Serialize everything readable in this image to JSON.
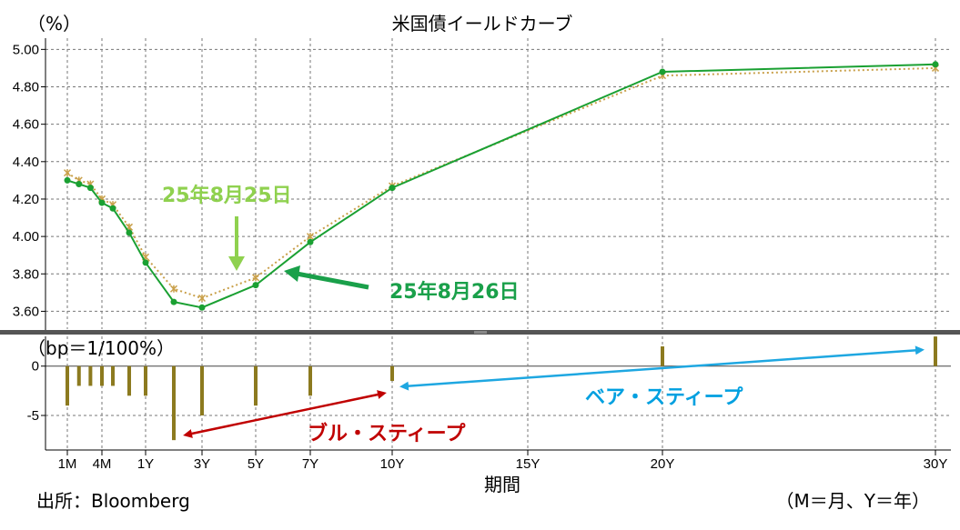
{
  "chart_data": {
    "type": "line",
    "title": "米国債イールドカーブ",
    "top_panel": {
      "unit_label": "（%）",
      "ylim": [
        3.5,
        5.06
      ],
      "yticks": [
        "5.00",
        "4.80",
        "4.60",
        "4.40",
        "4.20",
        "4.00",
        "3.80",
        "3.60"
      ],
      "series": [
        {
          "name": "25年8月25日",
          "color": "#c9a04a",
          "style": "dotted",
          "points": [
            [
              0.083,
              4.34
            ],
            [
              0.167,
              4.3
            ],
            [
              0.25,
              4.28
            ],
            [
              0.333,
              4.2
            ],
            [
              0.5,
              4.17
            ],
            [
              0.75,
              4.05
            ],
            [
              1,
              3.89
            ],
            [
              2,
              3.72
            ],
            [
              3,
              3.67
            ],
            [
              5,
              3.78
            ],
            [
              7,
              4.0
            ],
            [
              10,
              4.27
            ],
            [
              20,
              4.86
            ],
            [
              30,
              4.9
            ]
          ]
        },
        {
          "name": "25年8月26日",
          "color": "#1aa032",
          "style": "solid",
          "points": [
            [
              0.083,
              4.3
            ],
            [
              0.167,
              4.28
            ],
            [
              0.25,
              4.26
            ],
            [
              0.333,
              4.18
            ],
            [
              0.5,
              4.15
            ],
            [
              0.75,
              4.02
            ],
            [
              1,
              3.86
            ],
            [
              2,
              3.65
            ],
            [
              3,
              3.62
            ],
            [
              5,
              3.74
            ],
            [
              7,
              3.97
            ],
            [
              10,
              4.26
            ],
            [
              20,
              4.88
            ],
            [
              30,
              4.92
            ]
          ]
        }
      ]
    },
    "bottom_panel": {
      "type": "bar",
      "unit_label": "（bp＝1/100%）",
      "ylim": [
        -8.5,
        3.2
      ],
      "yticks": [
        "0",
        "-5"
      ],
      "bar_color": "#8c7a1f",
      "bars": [
        [
          0.083,
          -4
        ],
        [
          0.167,
          -2
        ],
        [
          0.25,
          -2
        ],
        [
          0.333,
          -2
        ],
        [
          0.5,
          -2
        ],
        [
          0.75,
          -3
        ],
        [
          1,
          -3
        ],
        [
          2,
          -7.5
        ],
        [
          3,
          -5
        ],
        [
          5,
          -4
        ],
        [
          7,
          -3
        ],
        [
          10,
          -1.5
        ],
        [
          20,
          2
        ],
        [
          30,
          3
        ]
      ]
    },
    "x_tick_labels": [
      {
        "label": "1M",
        "x": 0.083
      },
      {
        "label": "4M",
        "x": 0.333
      },
      {
        "label": "1Y",
        "x": 1
      },
      {
        "label": "3Y",
        "x": 3
      },
      {
        "label": "5Y",
        "x": 5
      },
      {
        "label": "7Y",
        "x": 7
      },
      {
        "label": "10Y",
        "x": 10
      },
      {
        "label": "15Y",
        "x": 15
      },
      {
        "label": "20Y",
        "x": 20
      },
      {
        "label": "30Y",
        "x": 30
      }
    ],
    "xlabel": "期間",
    "annotations": {
      "date1": "25年8月25日",
      "date2": "25年8月26日",
      "bull": "ブル・スティープ",
      "bear": "ベア・スティープ"
    },
    "colors": {
      "date1_text": "#8fd14f",
      "date2_text": "#1aa04a",
      "bull_text": "#c00000",
      "bear_text": "#00a0e0",
      "bull_arrow": "#c00000",
      "bear_arrow": "#1ea7e1",
      "divider": "#555555"
    }
  },
  "footer": {
    "source": "出所：Bloomberg",
    "note": "（M＝月、Y＝年）"
  }
}
